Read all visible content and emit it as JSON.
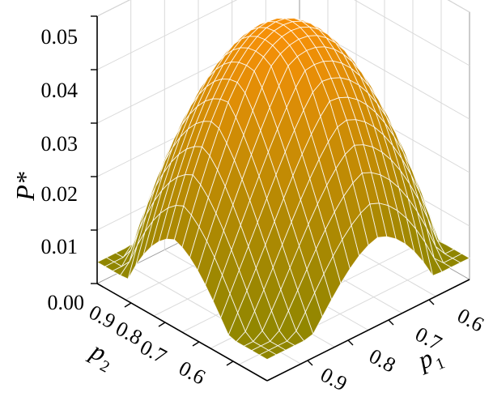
{
  "chart_data": {
    "type": "surface3d",
    "title": "",
    "zlabel": "P*",
    "ylabel": "p",
    "ylabel_sub": "2",
    "xlabel": "p",
    "xlabel_sub": "1",
    "zlim": [
      0.0,
      0.05
    ],
    "xlim": [
      0.55,
      0.95
    ],
    "ylim": [
      0.55,
      0.95
    ],
    "z_ticks": [
      "0.00",
      "0.01",
      "0.02",
      "0.03",
      "0.04",
      "0.05"
    ],
    "x_ticks": [
      "0.6",
      "0.7",
      "0.8",
      "0.9"
    ],
    "y_ticks": [
      "0.6",
      "0.7",
      "0.8",
      "0.9"
    ],
    "surface": {
      "peak": {
        "p1": 0.75,
        "p2": 0.75,
        "value": 0.048
      },
      "cusp": {
        "p1": 0.95,
        "p2": 0.95,
        "value": 0.0
      },
      "corner_p1_low_p2_high": 0.005,
      "corner_p1_high_p2_low": 0.005,
      "corner_p1_low_p2_low": 0.01
    },
    "grid": true,
    "colors": {
      "high": "#f79008",
      "low": "#8c8600",
      "mesh": "#ffffff"
    }
  }
}
